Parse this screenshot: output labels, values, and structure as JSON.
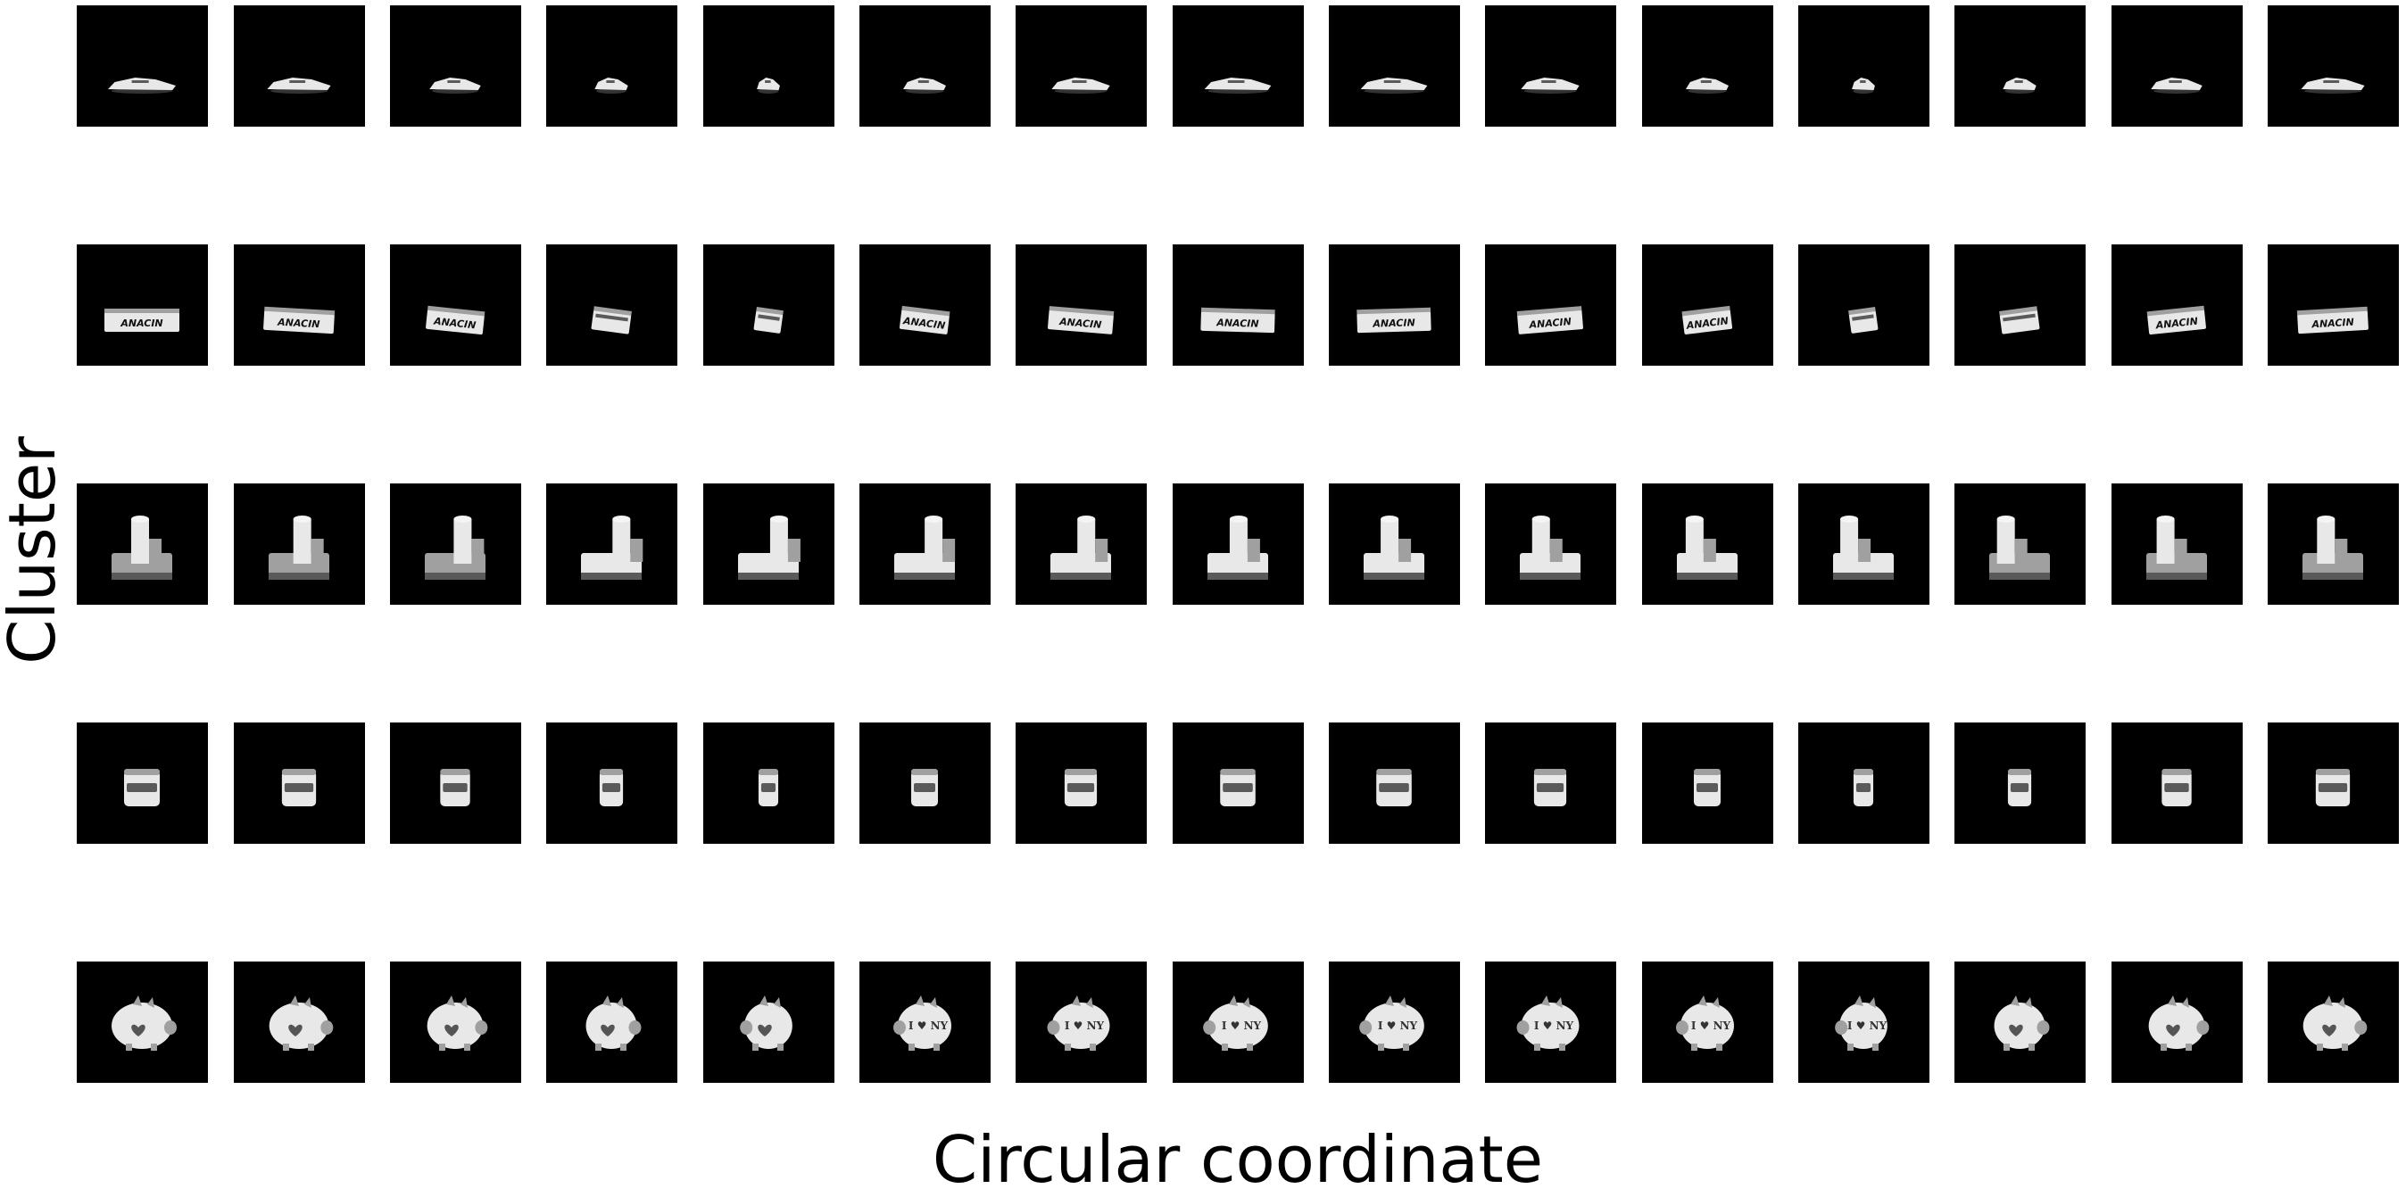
{
  "figure": {
    "ylabel": "Cluster",
    "xlabel": "Circular coordinate"
  },
  "grid": {
    "rows": [
      {
        "object": "toy-car",
        "views": 15
      },
      {
        "object": "anacin-box",
        "views": 15,
        "box_text": "ANACIN"
      },
      {
        "object": "cylinder-block",
        "views": 15
      },
      {
        "object": "jar",
        "views": 15
      },
      {
        "object": "piggy-bank",
        "views": 15,
        "pig_text": "I ♥ NY"
      }
    ]
  },
  "colors": {
    "tile_background": "#000000",
    "object_light": "#e8e8e8",
    "object_mid": "#a0a0a0",
    "object_dark": "#5a5a5a"
  }
}
